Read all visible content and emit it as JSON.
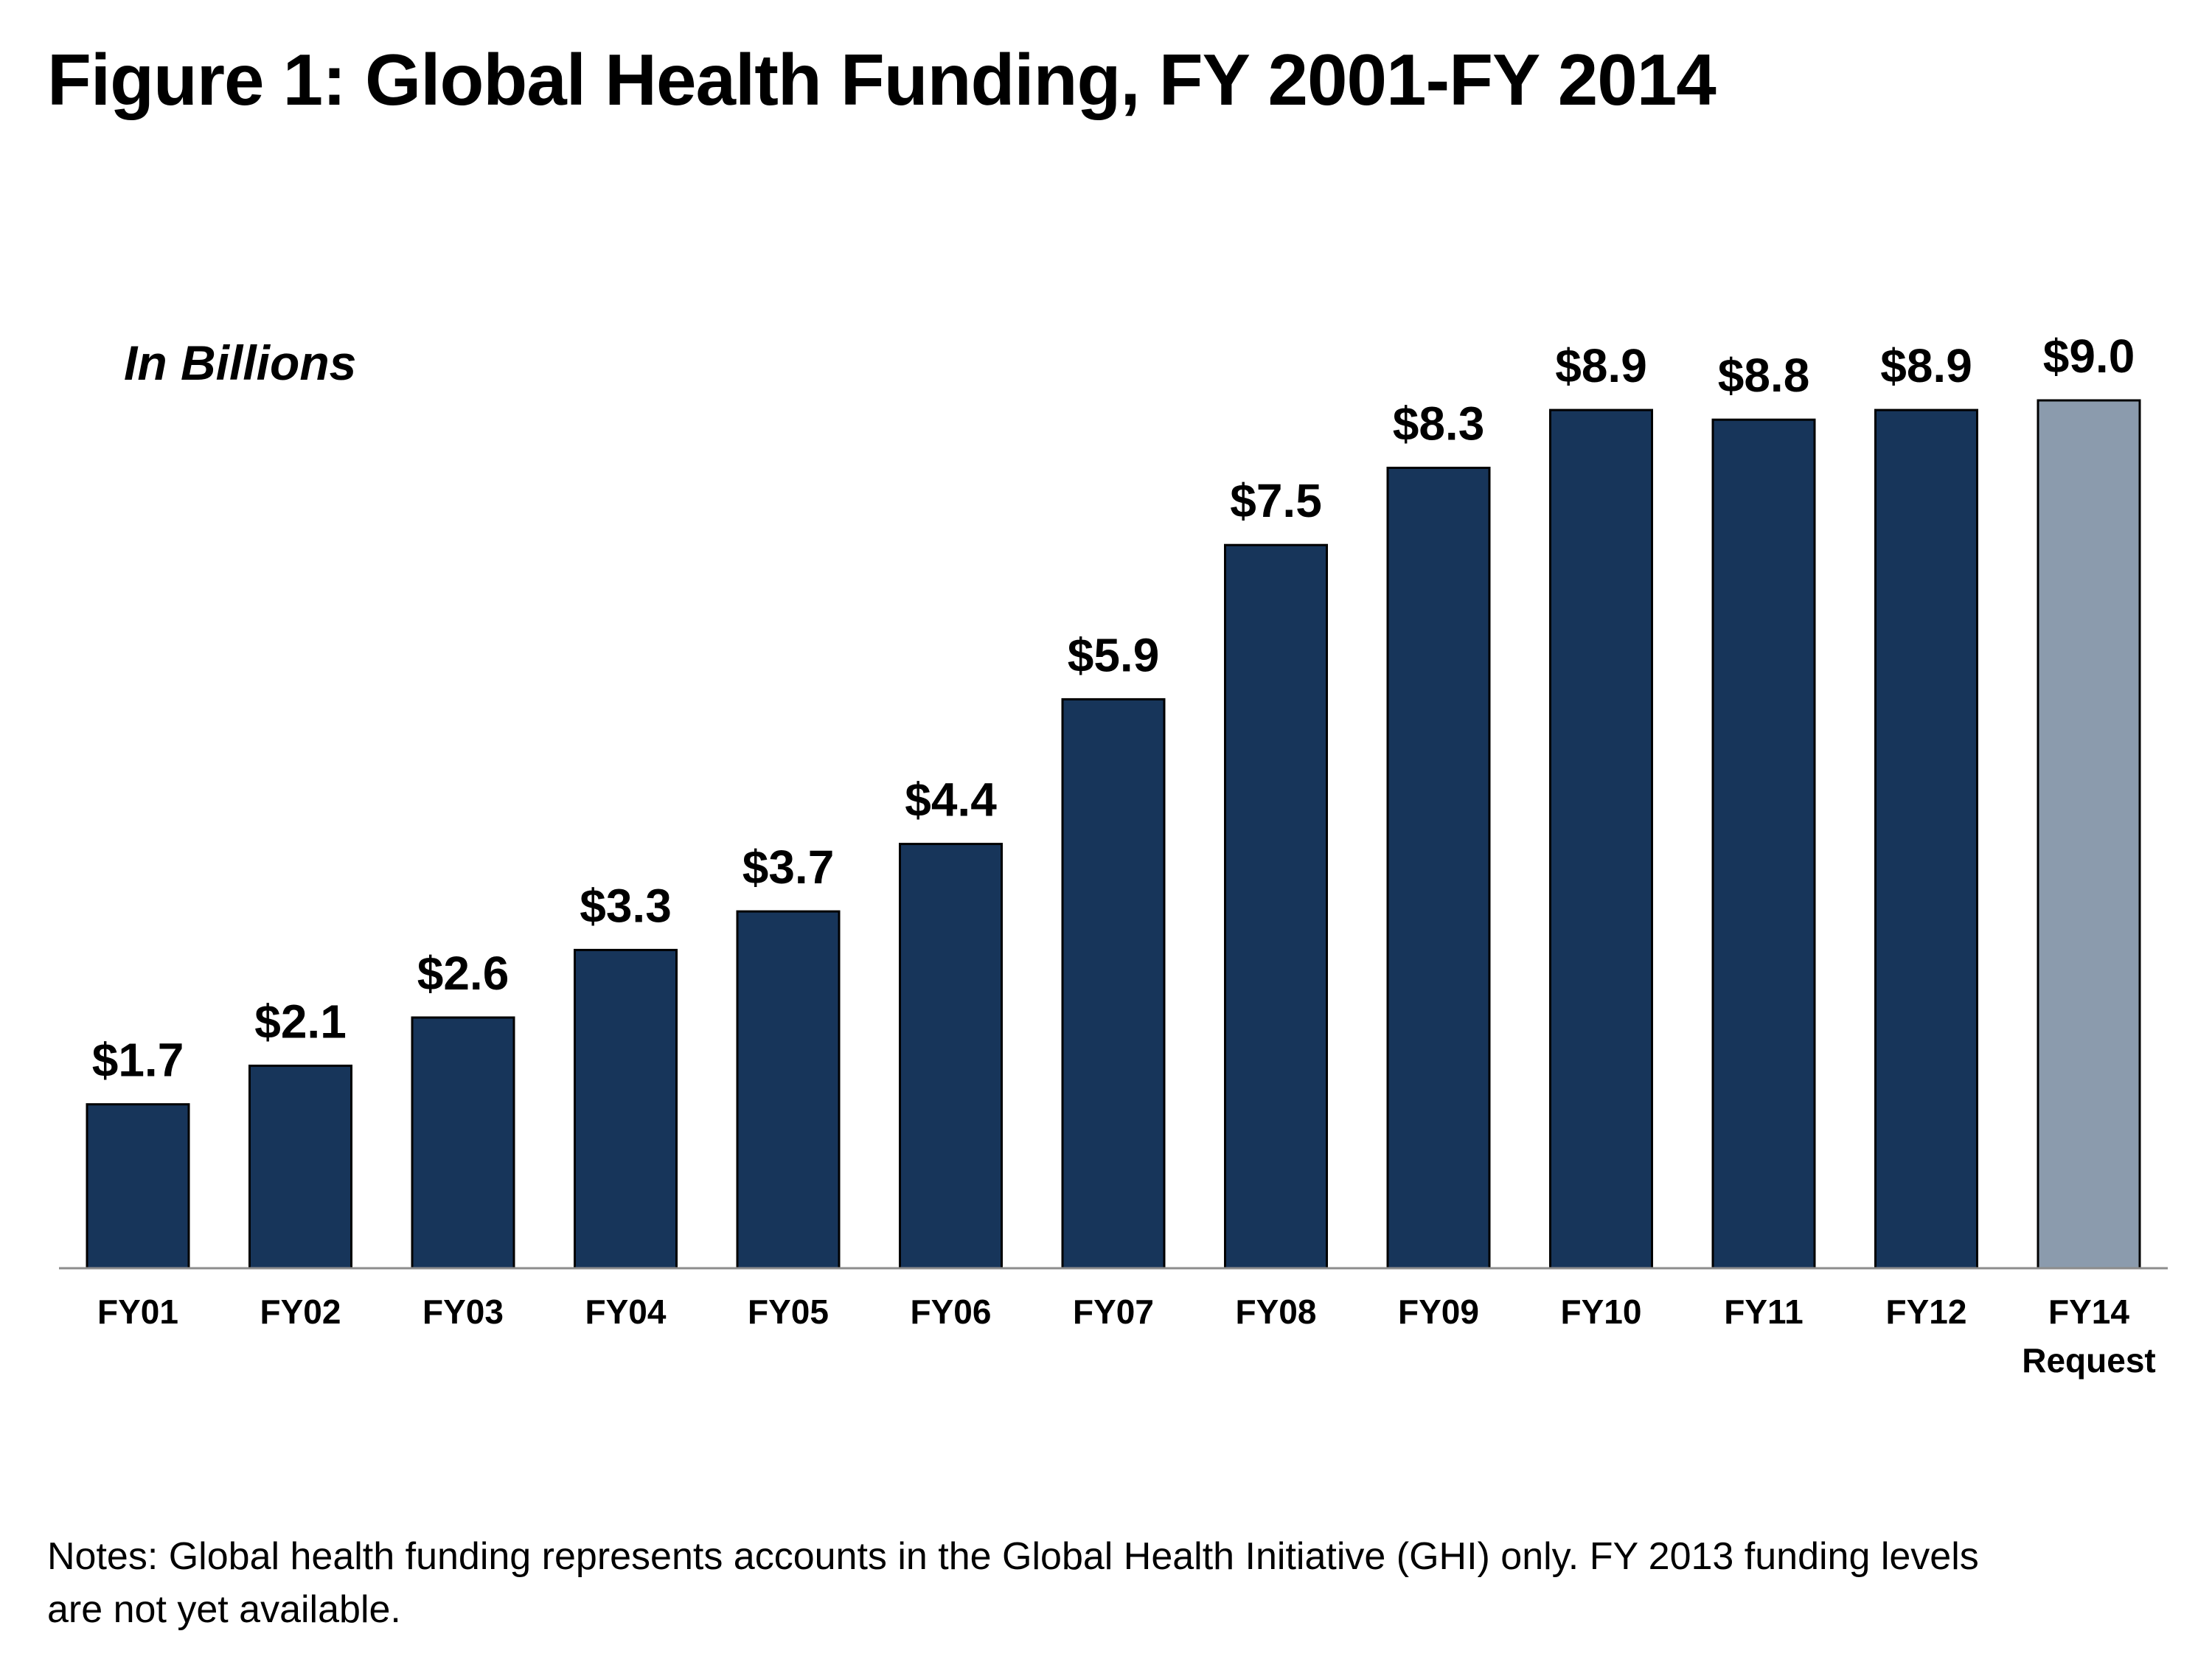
{
  "chart_data": {
    "type": "bar",
    "title": "Figure 1: Global Health Funding, FY 2001-FY 2014",
    "unit_label": "In Billions",
    "categories": [
      [
        "FY01"
      ],
      [
        "FY02"
      ],
      [
        "FY03"
      ],
      [
        "FY04"
      ],
      [
        "FY05"
      ],
      [
        "FY06"
      ],
      [
        "FY07"
      ],
      [
        "FY08"
      ],
      [
        "FY09"
      ],
      [
        "FY10"
      ],
      [
        "FY11"
      ],
      [
        "FY12"
      ],
      [
        "FY14",
        "Request"
      ]
    ],
    "values": [
      1.7,
      2.1,
      2.6,
      3.3,
      3.7,
      4.4,
      5.9,
      7.5,
      8.3,
      8.9,
      8.8,
      8.9,
      9.0
    ],
    "data_labels": [
      "$1.7",
      "$2.1",
      "$2.6",
      "$3.3",
      "$3.7",
      "$4.4",
      "$5.9",
      "$7.5",
      "$8.3",
      "$8.9",
      "$8.8",
      "$8.9",
      "$9.0"
    ],
    "bar_colors": [
      "#17355a",
      "#17355a",
      "#17355a",
      "#17355a",
      "#17355a",
      "#17355a",
      "#17355a",
      "#17355a",
      "#17355a",
      "#17355a",
      "#17355a",
      "#17355a",
      "#8b9bad"
    ],
    "xlabel": "",
    "ylabel": "",
    "grid": false,
    "legend": "none"
  },
  "notes": "Notes: Global health funding represents accounts in the Global Health Initiative (GHI) only.  FY 2013 funding levels are not yet available."
}
